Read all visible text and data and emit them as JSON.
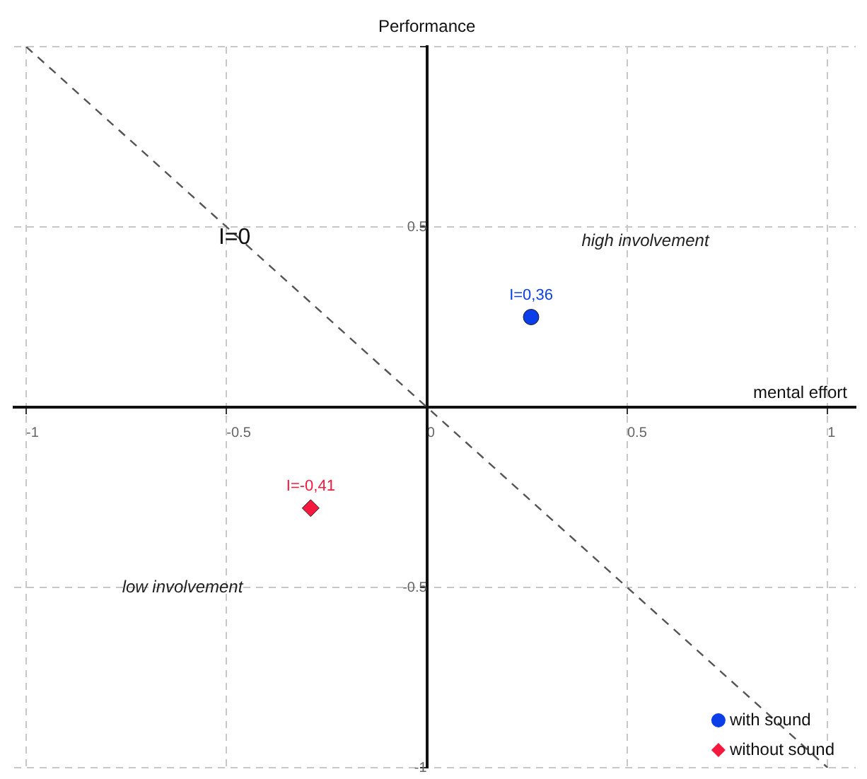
{
  "chart_data": {
    "type": "scatter",
    "xlabel": "mental effort",
    "ylabel": "Performance",
    "xlim": [
      -1.03,
      1.07
    ],
    "ylim": [
      -1,
      1
    ],
    "xticks": [
      -1,
      -0.5,
      0,
      0.5,
      1
    ],
    "yticks": [
      -1,
      -0.5,
      {
        "value": 0,
        "label": null
      },
      0.5,
      {
        "value": 1,
        "label": null
      }
    ],
    "grid": true,
    "legend": "bottom right",
    "series": [
      {
        "name": "with sound",
        "color": "#0b3ee8",
        "marker": "circle",
        "x": [
          0.26
        ],
        "values": [
          0.25
        ]
      },
      {
        "name": "without sound",
        "color": "#f5193f",
        "marker": "diamond",
        "x": [
          -0.29
        ],
        "values": [
          -0.28
        ]
      },
      {
        "type": "line",
        "color": "#555555",
        "line_style": "dashed",
        "marker": "none",
        "x": [
          -1,
          1
        ],
        "values": [
          1,
          -1
        ]
      }
    ],
    "annotations": [
      {
        "text": "I=0",
        "x": -0.48,
        "y": 0.47
      },
      {
        "text": "I=0,36",
        "x": 0.26,
        "y": 0.25
      },
      {
        "text": "I=-0,41",
        "x": -0.29,
        "y": -0.28
      },
      "high involvement",
      "low involvement"
    ]
  }
}
